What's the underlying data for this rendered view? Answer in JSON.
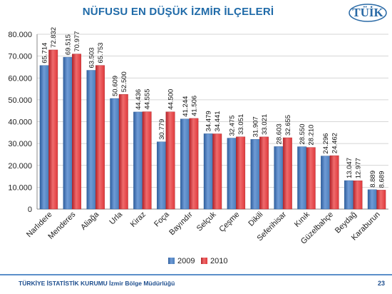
{
  "title": "NÜFUSU EN DÜŞÜK İZMİR İLÇELERİ",
  "logo_text": "TÜİK",
  "footer": {
    "org": "TÜRKİYE İSTATİSTİK KURUMU İzmir Bölge Müdürlüğü",
    "page": "23"
  },
  "colors": {
    "series_2009": "#4a7ebb",
    "series_2010": "#e0393c",
    "title": "#1f6aa8"
  },
  "chart_data": {
    "type": "bar",
    "title": "NÜFUSU EN DÜŞÜK İZMİR İLÇELERİ",
    "categories": [
      "Narlıdere",
      "Menderes",
      "Aliağa",
      "Urla",
      "Kiraz",
      "Foça",
      "Bayındır",
      "Selçuk",
      "Çeşme",
      "Dikili",
      "Seferihisar",
      "Kınık",
      "Güzelbahçe",
      "Beydağ",
      "Karaburun"
    ],
    "series": [
      {
        "name": "2009",
        "values": [
          65714,
          69515,
          63503,
          50609,
          44436,
          30779,
          41244,
          34479,
          32475,
          31907,
          28603,
          28550,
          24296,
          13047,
          8889
        ],
        "labels": [
          "65.714",
          "69.515",
          "63.503",
          "50.609",
          "44.436",
          "30.779",
          "41.244",
          "34.479",
          "32.475",
          "31.907",
          "28.603",
          "28.550",
          "24.296",
          "13.047",
          "8.889"
        ]
      },
      {
        "name": "2010",
        "values": [
          72832,
          70977,
          65753,
          52500,
          44555,
          44500,
          41506,
          34441,
          33051,
          33021,
          32655,
          28210,
          24462,
          12977,
          8689
        ],
        "labels": [
          "72.832",
          "70.977",
          "65.753",
          "52.500",
          "44.555",
          "44.500",
          "41.506",
          "34.441",
          "33.051",
          "33.021",
          "32.655",
          "28.210",
          "24.462",
          "12.977",
          "8.689"
        ]
      }
    ],
    "ylim": [
      0,
      80000
    ],
    "yticks": [
      0,
      10000,
      20000,
      30000,
      40000,
      50000,
      60000,
      70000,
      80000
    ],
    "ytick_labels": [
      "0",
      "10.000",
      "20.000",
      "30.000",
      "40.000",
      "50.000",
      "60.000",
      "70.000",
      "80.000"
    ],
    "grid": true,
    "legend_position": "bottom"
  }
}
